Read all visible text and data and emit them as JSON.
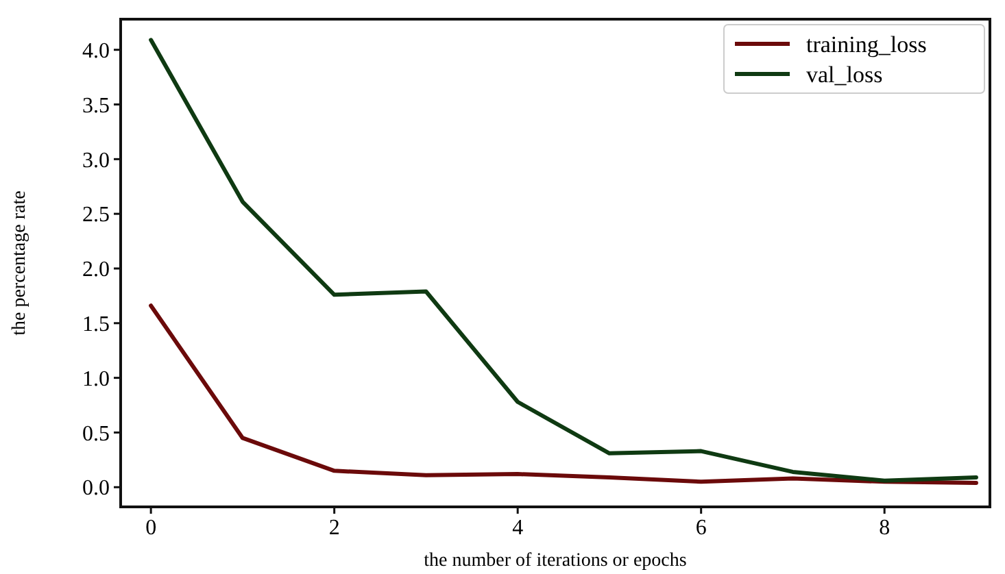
{
  "chart_data": {
    "type": "line",
    "xlabel": "the number of iterations or epochs",
    "ylabel": "the percentage rate",
    "x": [
      0,
      1,
      2,
      3,
      4,
      5,
      6,
      7,
      8,
      9
    ],
    "series": [
      {
        "name": "training_loss",
        "color": "#6b0a0a",
        "values": [
          1.66,
          0.45,
          0.15,
          0.11,
          0.12,
          0.09,
          0.05,
          0.08,
          0.05,
          0.04
        ]
      },
      {
        "name": "val_loss",
        "color": "#0f3a12",
        "values": [
          4.09,
          2.61,
          1.76,
          1.79,
          0.78,
          0.31,
          0.33,
          0.14,
          0.06,
          0.09
        ]
      }
    ],
    "xlim": [
      -0.33,
      9.15
    ],
    "xticks": [
      0,
      2,
      4,
      6,
      8
    ],
    "ylim": [
      -0.18,
      4.28
    ],
    "yticks": [
      {
        "value": 0,
        "label": "0.0"
      },
      0.5,
      {
        "value": 1,
        "label": "1.0"
      },
      1.5,
      {
        "value": 2,
        "label": "2.0"
      },
      2.5,
      {
        "value": 3,
        "label": "3.0"
      },
      3.5,
      {
        "value": 4,
        "label": "4.0"
      }
    ],
    "grid": false,
    "legend": "top right",
    "marker": "none",
    "line_style": "solid"
  }
}
